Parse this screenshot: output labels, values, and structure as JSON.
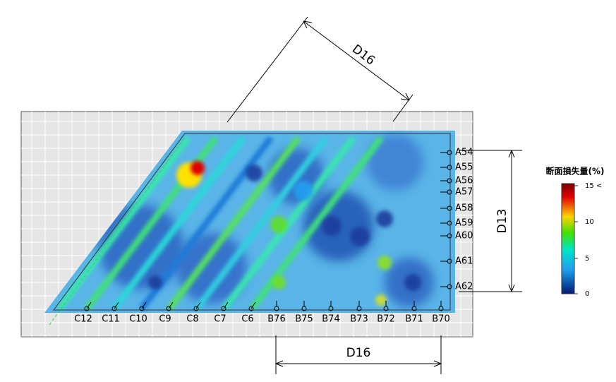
{
  "dimensions": {
    "top": "D16",
    "right": "D13",
    "bottom": "D16"
  },
  "c_labels": [
    "C12",
    "C11",
    "C10",
    "C9",
    "C8",
    "C7",
    "C6"
  ],
  "b_labels": [
    "B76",
    "B75",
    "B74",
    "B73",
    "B72",
    "B71",
    "B70"
  ],
  "a_labels": [
    "A54",
    "A55",
    "A56",
    "A57",
    "A58",
    "A59",
    "A60",
    "A61",
    "A62"
  ],
  "legend": {
    "title": "断面損失量(%)",
    "ticks": [
      "15 <",
      "10",
      "5",
      "0"
    ]
  }
}
